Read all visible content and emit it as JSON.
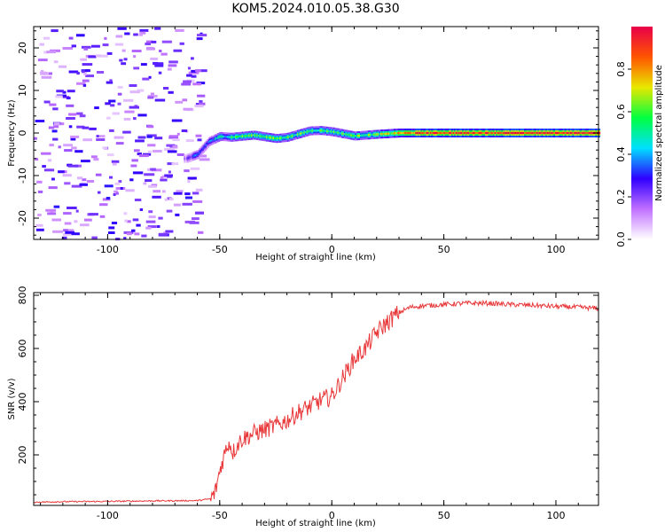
{
  "title": "KOM5.2024.010.05.38.G30",
  "colorbar": {
    "label": "Normalized spectral amplitude",
    "ticks": [
      0.0,
      0.2,
      0.4,
      0.6,
      0.8
    ],
    "tick_labels": [
      "0.0",
      "0.2",
      "0.4",
      "0.6",
      "0.8"
    ],
    "range": [
      0,
      1
    ],
    "colormap": "gist_ncar_r",
    "colors": [
      "#ffffff",
      "#c070ff",
      "#3000ff",
      "#00e0ff",
      "#00ff40",
      "#e8e800",
      "#ff5500",
      "#e8004a"
    ]
  },
  "chart_data": [
    {
      "type": "heatmap",
      "xlabel": "Height of straight line (km)",
      "ylabel": "Frequency (Hz)",
      "xlim": [
        -133,
        119
      ],
      "ylim": [
        -25,
        25
      ],
      "xticks": [
        -100,
        -50,
        0,
        50,
        100
      ],
      "yticks": [
        -20,
        -10,
        0,
        10,
        20
      ],
      "xtick_labels": [
        "-100",
        "-50",
        "0",
        "50",
        "100"
      ],
      "ytick_labels": [
        "-20",
        "-10",
        "0",
        "10",
        "20"
      ],
      "ridge": {
        "description_points": [
          {
            "x": -65,
            "y": -6
          },
          {
            "x": -60,
            "y": -5
          },
          {
            "x": -55,
            "y": -2
          },
          {
            "x": -50,
            "y": -0.8
          },
          {
            "x": -45,
            "y": -1.0
          },
          {
            "x": -35,
            "y": -0.5
          },
          {
            "x": -25,
            "y": -1.3
          },
          {
            "x": -20,
            "y": -1.0
          },
          {
            "x": -10,
            "y": 0.5
          },
          {
            "x": -5,
            "y": 0.6
          },
          {
            "x": 0,
            "y": 0.3
          },
          {
            "x": 10,
            "y": -0.7
          },
          {
            "x": 20,
            "y": -0.3
          },
          {
            "x": 30,
            "y": 0.0
          },
          {
            "x": 119,
            "y": 0.0
          }
        ],
        "amplitude": [
          {
            "x": -65,
            "a": 0.2
          },
          {
            "x": -55,
            "a": 0.35
          },
          {
            "x": -45,
            "a": 0.55
          },
          {
            "x": -30,
            "a": 0.6
          },
          {
            "x": -10,
            "a": 0.55
          },
          {
            "x": 20,
            "a": 0.6
          },
          {
            "x": 40,
            "a": 0.9
          },
          {
            "x": 119,
            "a": 0.95
          }
        ]
      },
      "noise_region": {
        "x_from": -133,
        "x_to": -58,
        "amplitude_max": 0.25
      }
    },
    {
      "type": "line",
      "xlabel": "Height of straight line (km)",
      "ylabel": "SNR (v/v)",
      "xlim": [
        -133,
        119
      ],
      "ylim": [
        10,
        810
      ],
      "xticks": [
        -100,
        -50,
        0,
        50,
        100
      ],
      "yticks": [
        200,
        400,
        600,
        800
      ],
      "xtick_labels": [
        "-100",
        "-50",
        "0",
        "50",
        "100"
      ],
      "ytick_labels": [
        "200",
        "400",
        "600",
        "800"
      ],
      "series": [
        {
          "color": "#e8383a",
          "x": [
            -133,
            -120,
            -100,
            -80,
            -60,
            -54,
            -52,
            -50,
            -48,
            -46,
            -44,
            -42,
            -40,
            -35,
            -30,
            -25,
            -20,
            -15,
            -10,
            -5,
            0,
            5,
            10,
            15,
            20,
            25,
            30,
            35,
            40,
            50,
            60,
            70,
            80,
            90,
            100,
            110,
            119
          ],
          "y": [
            22,
            24,
            25,
            27,
            28,
            35,
            60,
            140,
            200,
            250,
            210,
            240,
            260,
            280,
            295,
            310,
            330,
            360,
            380,
            405,
            420,
            490,
            560,
            600,
            660,
            700,
            735,
            755,
            760,
            765,
            770,
            770,
            765,
            762,
            758,
            755,
            750
          ]
        }
      ]
    }
  ]
}
